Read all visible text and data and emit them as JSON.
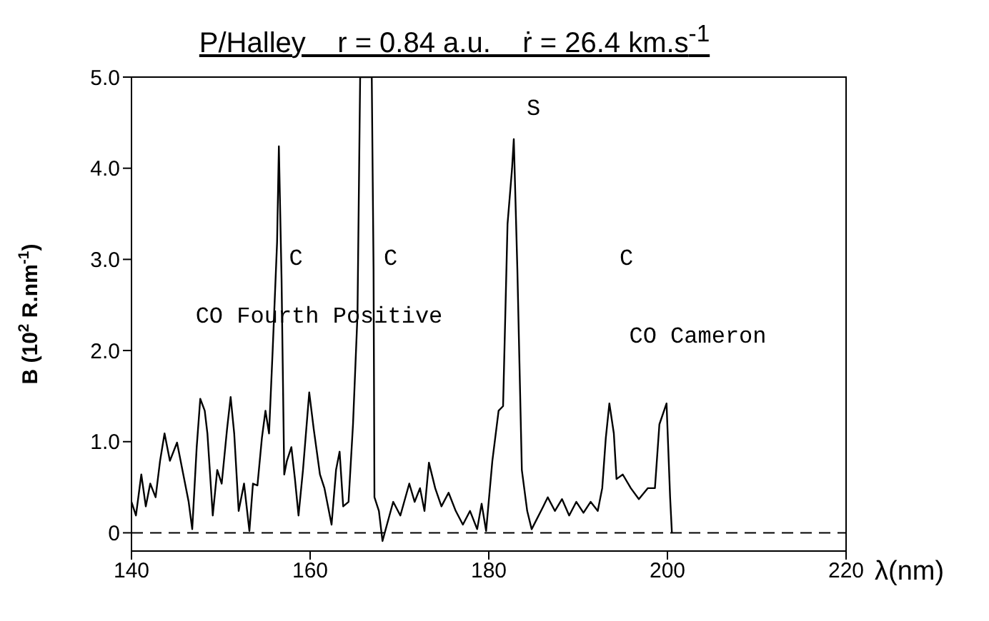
{
  "chart_data": {
    "type": "line",
    "title": "P/Halley    r = 0.84 a.u.    ṙ = 26.4 km.s$^{-1}$",
    "xlabel": "λ(nm)",
    "ylabel": "B (10$^{2}$ R.nm$^{-1}$)",
    "xlim": [
      140,
      220
    ],
    "xticks": [
      140,
      160,
      180,
      200,
      220
    ],
    "ylim": [
      -0.2,
      5
    ],
    "yticks": [
      0,
      {
        "value": 1,
        "label": "1.0"
      },
      {
        "value": 2,
        "label": "2.0"
      },
      {
        "value": 3,
        "label": "3.0"
      },
      {
        "value": 4,
        "label": "4.0"
      },
      {
        "value": 5,
        "label": "5.0"
      }
    ],
    "grid": false,
    "marker": "none",
    "line_style": "solid",
    "ref_lines": [
      {
        "axis": "y",
        "value": 0,
        "line_style": "dashed",
        "color": "#000000"
      }
    ],
    "annotations": [
      "C",
      "C",
      "S",
      "C",
      "CO Fourth Positive",
      "CO Cameron"
    ],
    "series": [
      {
        "color": "#000000",
        "x": [
          140,
          140.5,
          141.1,
          141.6,
          142.1,
          142.7,
          143.2,
          143.7,
          144.3,
          145.1,
          145.6,
          146.4,
          146.8,
          147.3,
          147.7,
          148.2,
          148.5,
          149.1,
          149.6,
          150.1,
          150.7,
          151.1,
          151.5,
          152,
          152.6,
          153.2,
          153.6,
          154.1,
          154.6,
          155,
          155.4,
          155.8,
          156.3,
          156.5,
          156.8,
          157.1,
          157.4,
          157.9,
          158.3,
          158.7,
          159.2,
          159.9,
          160.4,
          161.1,
          161.6,
          162.4,
          162.9,
          163.3,
          163.7,
          164.3,
          164.8,
          165.3,
          165.6,
          166.9,
          167.1,
          167.2,
          167.7,
          168.1,
          168.6,
          169.3,
          170.1,
          171.1,
          171.7,
          172.3,
          172.8,
          173.3,
          174,
          174.7,
          175.5,
          176.3,
          177.1,
          177.9,
          178.7,
          179.2,
          179.7,
          180.4,
          181.1,
          181.6,
          182.1,
          182.6,
          182.8,
          183.2,
          183.7,
          184.3,
          184.8,
          186.1,
          186.6,
          187.4,
          188.2,
          189,
          189.8,
          190.6,
          191.4,
          192.2,
          192.7,
          193.1,
          193.5,
          194,
          194.3,
          195,
          195.9,
          196.8,
          197.8,
          198.6,
          199.1,
          199.9,
          200.3,
          200.5
        ],
        "values": [
          0.34,
          0.19,
          0.64,
          0.29,
          0.54,
          0.39,
          0.79,
          1.09,
          0.79,
          0.99,
          0.74,
          0.34,
          0.04,
          0.94,
          1.47,
          1.34,
          1.09,
          0.19,
          0.69,
          0.54,
          1.14,
          1.49,
          1.09,
          0.24,
          0.54,
          0.02,
          0.54,
          0.52,
          1.04,
          1.34,
          1.09,
          1.99,
          3.19,
          4.24,
          2.79,
          0.64,
          0.79,
          0.94,
          0.59,
          0.19,
          0.69,
          1.54,
          1.14,
          0.64,
          0.49,
          0.09,
          0.69,
          0.89,
          0.29,
          0.34,
          1.19,
          2.39,
          5,
          5,
          2.89,
          0.39,
          0.24,
          -0.09,
          0.09,
          0.34,
          0.19,
          0.54,
          0.34,
          0.49,
          0.24,
          0.77,
          0.49,
          0.29,
          0.44,
          0.24,
          0.09,
          0.24,
          0.04,
          0.32,
          0.02,
          0.79,
          1.34,
          1.39,
          3.39,
          3.99,
          4.32,
          2.89,
          0.69,
          0.24,
          0.04,
          0.29,
          0.39,
          0.24,
          0.37,
          0.19,
          0.34,
          0.22,
          0.34,
          0.24,
          0.49,
          1.04,
          1.42,
          1.09,
          0.59,
          0.64,
          0.49,
          0.37,
          0.49,
          0.49,
          1.19,
          1.42,
          0.39,
          0
        ]
      }
    ]
  }
}
